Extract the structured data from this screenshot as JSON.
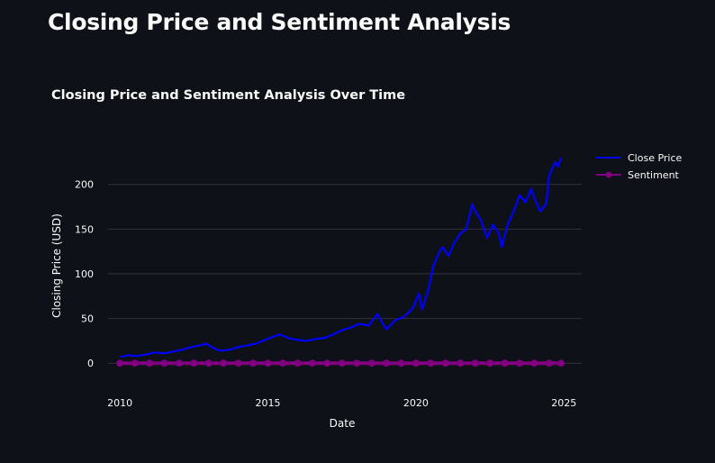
{
  "page": {
    "title": "Closing Price and Sentiment Analysis"
  },
  "chart_data": {
    "type": "line",
    "title": "Closing Price and Sentiment Analysis Over Time",
    "xlabel": "Date",
    "ylabel": "Closing Price (USD)",
    "x_ticks": [
      2010,
      2015,
      2020,
      2025
    ],
    "y_ticks": [
      0,
      50,
      100,
      150,
      200
    ],
    "xlim": [
      2009.6,
      2025.6
    ],
    "ylim": [
      -27,
      240
    ],
    "grid": true,
    "legend_position": "top-right",
    "series": [
      {
        "name": "Close Price",
        "color": "#0000ff",
        "mode": "line",
        "x": [
          2010.0,
          2010.3,
          2010.6,
          2010.9,
          2011.2,
          2011.5,
          2011.8,
          2012.1,
          2012.4,
          2012.7,
          2012.9,
          2013.2,
          2013.4,
          2013.7,
          2014.0,
          2014.3,
          2014.6,
          2014.9,
          2015.2,
          2015.4,
          2015.7,
          2016.0,
          2016.3,
          2016.6,
          2016.9,
          2017.2,
          2017.5,
          2017.8,
          2018.1,
          2018.4,
          2018.7,
          2018.9,
          2019.0,
          2019.3,
          2019.6,
          2019.9,
          2020.1,
          2020.2,
          2020.4,
          2020.6,
          2020.8,
          2020.9,
          2021.1,
          2021.3,
          2021.5,
          2021.7,
          2021.9,
          2022.0,
          2022.2,
          2022.4,
          2022.6,
          2022.8,
          2022.9,
          2023.1,
          2023.3,
          2023.5,
          2023.7,
          2023.9,
          2024.0,
          2024.2,
          2024.4,
          2024.5,
          2024.7,
          2024.8,
          2024.9
        ],
        "y": [
          7,
          9,
          8,
          10,
          12,
          11,
          13,
          15,
          18,
          20,
          22,
          16,
          14,
          15,
          18,
          20,
          22,
          26,
          30,
          32,
          28,
          26,
          25,
          27,
          28,
          32,
          37,
          40,
          44,
          42,
          55,
          43,
          38,
          48,
          52,
          62,
          78,
          60,
          80,
          110,
          125,
          130,
          120,
          135,
          145,
          150,
          178,
          170,
          160,
          140,
          155,
          145,
          130,
          155,
          170,
          188,
          180,
          195,
          185,
          170,
          178,
          210,
          225,
          220,
          230
        ]
      },
      {
        "name": "Sentiment",
        "color": "#800080",
        "mode": "lines+markers",
        "x": [
          2010.0,
          2010.5,
          2011.0,
          2011.5,
          2012.0,
          2012.5,
          2013.0,
          2013.5,
          2014.0,
          2014.5,
          2015.0,
          2015.5,
          2016.0,
          2016.5,
          2017.0,
          2017.5,
          2018.0,
          2018.5,
          2019.0,
          2019.5,
          2020.0,
          2020.5,
          2021.0,
          2021.5,
          2022.0,
          2022.5,
          2023.0,
          2023.5,
          2024.0,
          2024.5,
          2024.9
        ],
        "y": [
          0,
          0,
          0,
          0,
          0,
          0,
          0,
          0,
          0,
          0,
          0,
          0,
          0,
          0,
          0,
          0,
          0,
          0,
          0,
          0,
          0,
          0,
          0,
          0,
          0,
          0,
          0,
          0,
          0,
          0,
          0
        ]
      }
    ]
  }
}
